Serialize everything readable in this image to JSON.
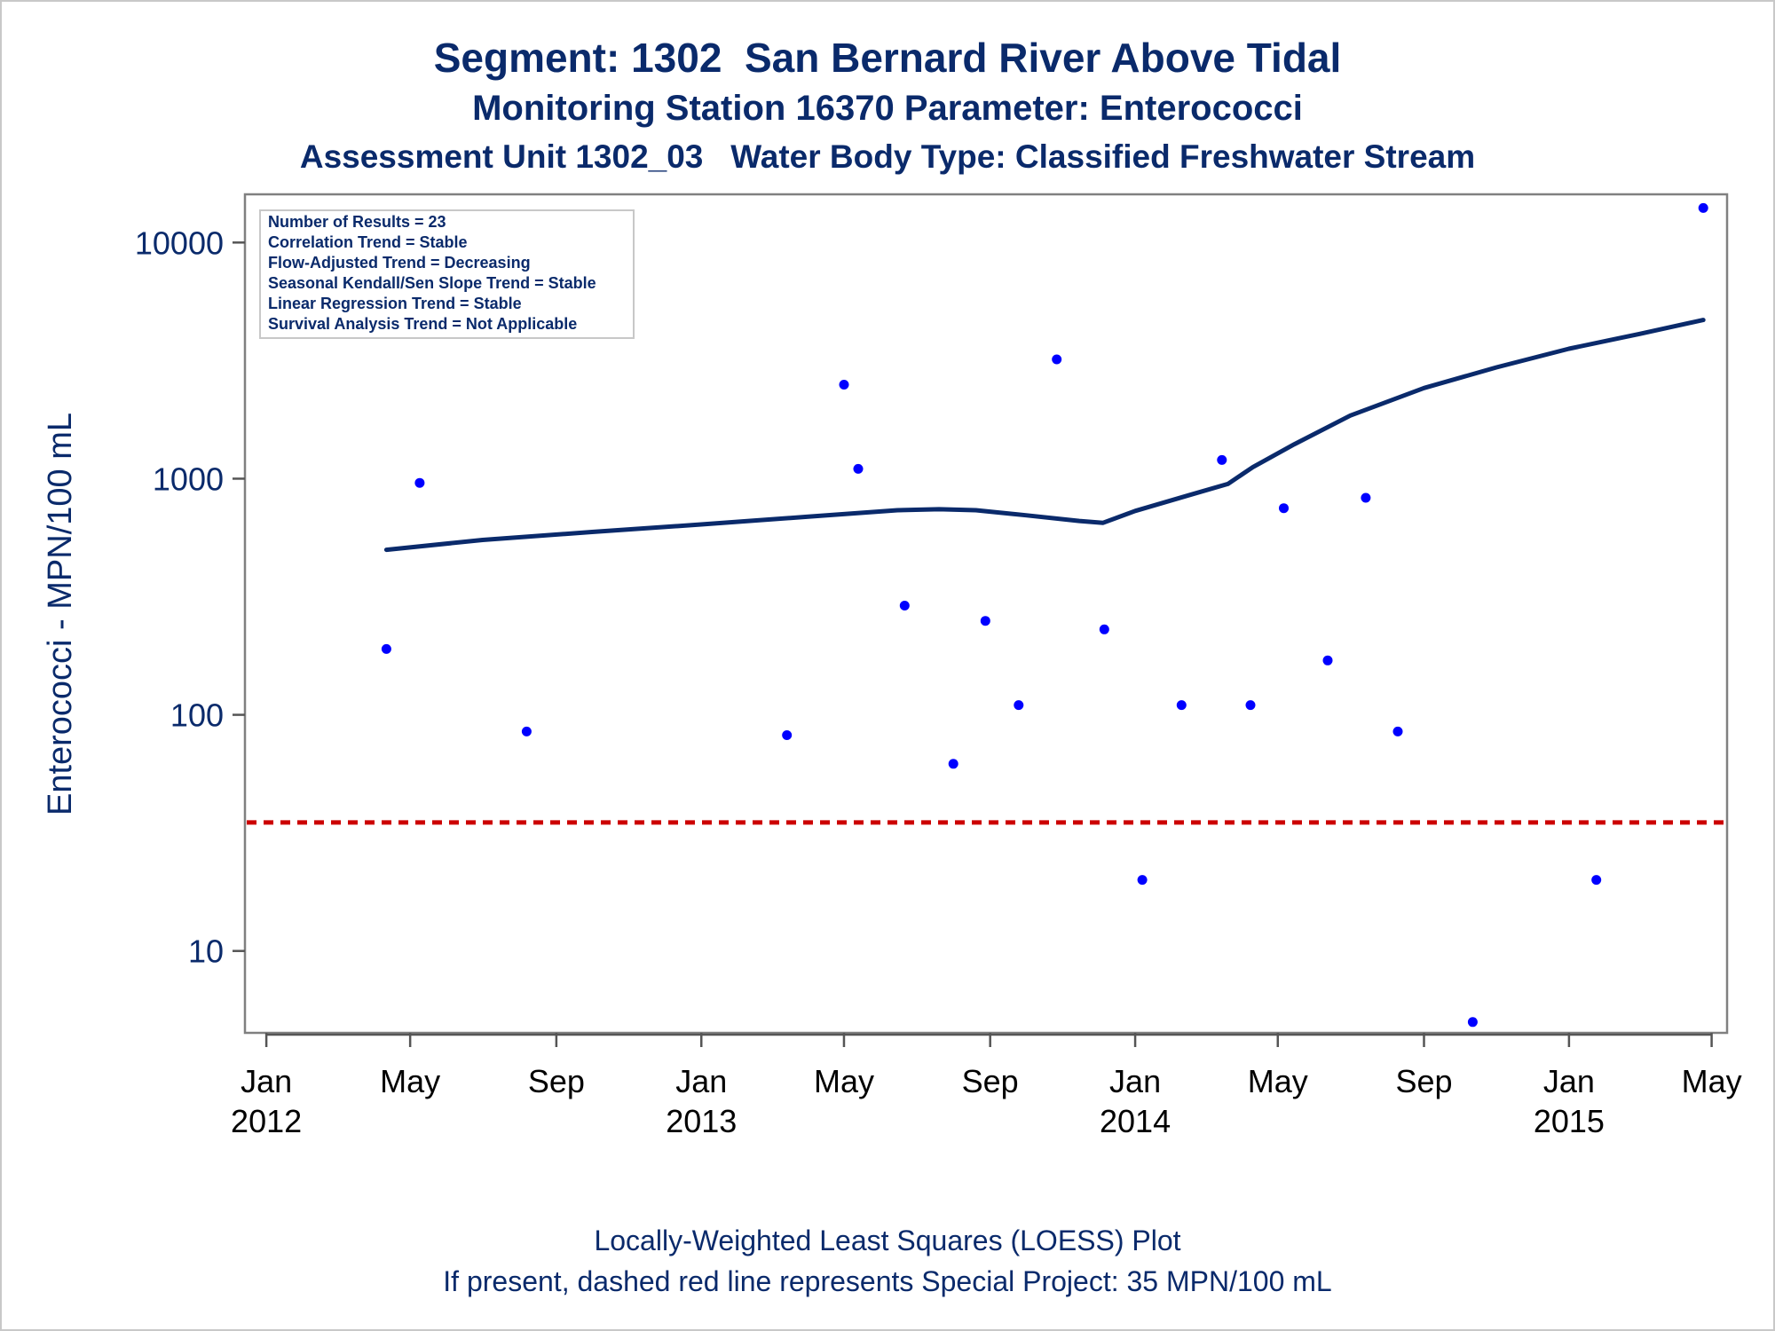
{
  "titles": {
    "line1": "Segment: 1302  San Bernard River Above Tidal",
    "line2": "Monitoring Station 16370 Parameter: Enterococci",
    "line3": "Assessment Unit 1302_03   Water Body Type: Classified Freshwater Stream"
  },
  "stats_box": {
    "lines": [
      "Number of Results = 23",
      "Correlation Trend = Stable",
      "Flow-Adjusted Trend = Decreasing",
      "Seasonal Kendall/Sen Slope Trend = Stable",
      "Linear Regression Trend = Stable",
      "Survival Analysis Trend = Not Applicable"
    ]
  },
  "footnotes": {
    "line1": "Locally-Weighted Least Squares (LOESS) Plot",
    "line2": "If present, dashed red line represents Special Project: 35 MPN/100 mL"
  },
  "chart_data": {
    "type": "scatter",
    "ylabel": "Enterococci - MPN/100 mL",
    "xlabel": "",
    "yscale": "log",
    "ylim": [
      4.5,
      16000
    ],
    "xlim": [
      "2011-12-14",
      "2015-05-14"
    ],
    "y_ticks": [
      {
        "value": 10,
        "label": "10"
      },
      {
        "value": 100,
        "label": "100"
      },
      {
        "value": 1000,
        "label": "1000"
      },
      {
        "value": 10000,
        "label": "10000"
      }
    ],
    "x_ticks": [
      {
        "date": "2012-01-01",
        "month": "Jan",
        "year": "2012"
      },
      {
        "date": "2012-05-01",
        "month": "May",
        "year": ""
      },
      {
        "date": "2012-09-01",
        "month": "Sep",
        "year": ""
      },
      {
        "date": "2013-01-01",
        "month": "Jan",
        "year": "2013"
      },
      {
        "date": "2013-05-01",
        "month": "May",
        "year": ""
      },
      {
        "date": "2013-09-01",
        "month": "Sep",
        "year": ""
      },
      {
        "date": "2014-01-01",
        "month": "Jan",
        "year": "2014"
      },
      {
        "date": "2014-05-01",
        "month": "May",
        "year": ""
      },
      {
        "date": "2014-09-01",
        "month": "Sep",
        "year": ""
      },
      {
        "date": "2015-01-01",
        "month": "Jan",
        "year": "2015"
      },
      {
        "date": "2015-05-01",
        "month": "May",
        "year": ""
      }
    ],
    "points": [
      {
        "x": "2012-04-11",
        "y": 190
      },
      {
        "x": "2012-05-09",
        "y": 960
      },
      {
        "x": "2012-08-07",
        "y": 85
      },
      {
        "x": "2013-03-14",
        "y": 82
      },
      {
        "x": "2013-05-01",
        "y": 2500
      },
      {
        "x": "2013-05-13",
        "y": 1100
      },
      {
        "x": "2013-06-21",
        "y": 290
      },
      {
        "x": "2013-08-01",
        "y": 62
      },
      {
        "x": "2013-08-28",
        "y": 250
      },
      {
        "x": "2013-09-25",
        "y": 110
      },
      {
        "x": "2013-10-27",
        "y": 3200
      },
      {
        "x": "2013-12-06",
        "y": 230
      },
      {
        "x": "2014-01-07",
        "y": 20
      },
      {
        "x": "2014-02-09",
        "y": 110
      },
      {
        "x": "2014-03-15",
        "y": 1200
      },
      {
        "x": "2014-04-08",
        "y": 110
      },
      {
        "x": "2014-05-06",
        "y": 750
      },
      {
        "x": "2014-06-12",
        "y": 170
      },
      {
        "x": "2014-07-14",
        "y": 830
      },
      {
        "x": "2014-08-10",
        "y": 85
      },
      {
        "x": "2014-10-12",
        "y": 5
      },
      {
        "x": "2015-01-24",
        "y": 20
      },
      {
        "x": "2015-04-24",
        "y": 14000
      }
    ],
    "loess": [
      {
        "x": "2012-04-11",
        "y": 500
      },
      {
        "x": "2012-07-01",
        "y": 550
      },
      {
        "x": "2012-10-01",
        "y": 595
      },
      {
        "x": "2013-01-01",
        "y": 640
      },
      {
        "x": "2013-04-01",
        "y": 690
      },
      {
        "x": "2013-06-15",
        "y": 735
      },
      {
        "x": "2013-07-20",
        "y": 742
      },
      {
        "x": "2013-08-20",
        "y": 735
      },
      {
        "x": "2013-10-01",
        "y": 700
      },
      {
        "x": "2013-11-15",
        "y": 662
      },
      {
        "x": "2013-12-05",
        "y": 650
      },
      {
        "x": "2014-01-01",
        "y": 730
      },
      {
        "x": "2014-02-15",
        "y": 850
      },
      {
        "x": "2014-03-20",
        "y": 950
      },
      {
        "x": "2014-04-10",
        "y": 1120
      },
      {
        "x": "2014-05-15",
        "y": 1400
      },
      {
        "x": "2014-07-01",
        "y": 1850
      },
      {
        "x": "2014-09-01",
        "y": 2420
      },
      {
        "x": "2014-11-01",
        "y": 2960
      },
      {
        "x": "2015-01-01",
        "y": 3550
      },
      {
        "x": "2015-03-01",
        "y": 4100
      },
      {
        "x": "2015-04-24",
        "y": 4700
      }
    ],
    "reference_line": {
      "y": 35,
      "style": "dashed",
      "color": "#cc0000"
    },
    "colors": {
      "points": "#0000ff",
      "loess": "#0a2a6b",
      "axis": "#555555",
      "text": "#0a2a6b",
      "tick_labels_x": "#000000"
    }
  }
}
